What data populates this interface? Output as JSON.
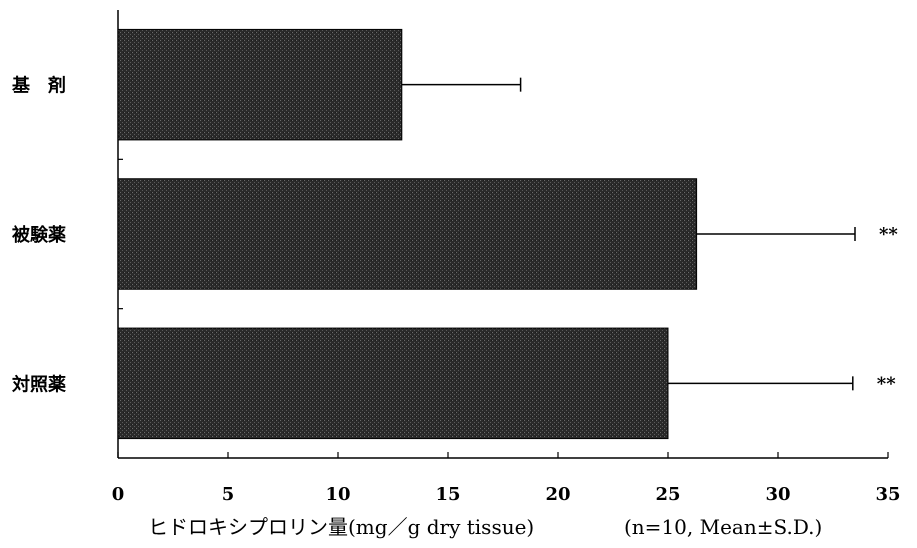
{
  "chart_data": {
    "type": "bar",
    "orientation": "horizontal",
    "categories": [
      "基　剤",
      "被験薬",
      "対照薬"
    ],
    "values": [
      12.9,
      26.3,
      25.0
    ],
    "errors": [
      5.4,
      7.2,
      8.4
    ],
    "significance": [
      "",
      "**",
      "**"
    ],
    "xlim": [
      0,
      35
    ],
    "xticks": [
      "0",
      "5",
      "10",
      "15",
      "20",
      "25",
      "30",
      "35"
    ],
    "xlabel": "ヒドロキシプロリン量(mg／g dry tissue)",
    "note": "(n=10,  Mean±S.D.)",
    "grid": false,
    "bar_color": "#2e2e2e"
  }
}
